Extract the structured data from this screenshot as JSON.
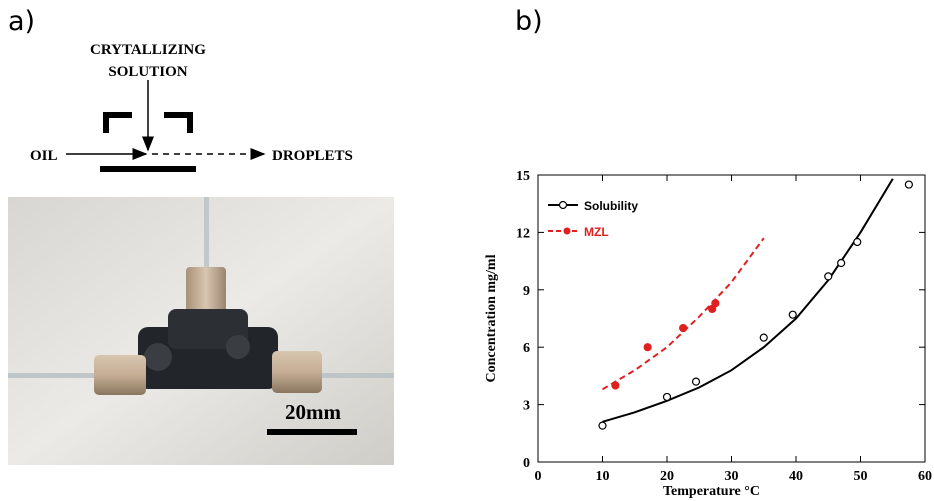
{
  "panels": {
    "a": "a)",
    "b": "b)"
  },
  "schematic": {
    "top_label_line1": "CRYTALLIZING",
    "top_label_line2": "SOLUTION",
    "left_label": "OIL",
    "right_label": "DROPLETS"
  },
  "photo": {
    "scale_label": "20mm"
  },
  "colors": {
    "solubility": "#000000",
    "mzl": "#e02020"
  },
  "chart_data": {
    "type": "scatter",
    "title": "",
    "xlabel": "Temperature  °C",
    "ylabel": "Concentration  mg/ml",
    "xlim": [
      0,
      60
    ],
    "ylim": [
      0,
      15
    ],
    "xticks": [
      "0",
      "10",
      "20",
      "30",
      "40",
      "50",
      "60"
    ],
    "yticks": [
      "0",
      "3",
      "6",
      "9",
      "12",
      "15"
    ],
    "legend_position": "top-left",
    "grid": false,
    "series": [
      {
        "name": "Solubility",
        "points": [
          [
            10,
            1.9
          ],
          [
            20,
            3.4
          ],
          [
            24.5,
            4.2
          ],
          [
            35,
            6.5
          ],
          [
            39.5,
            7.7
          ],
          [
            45,
            9.7
          ],
          [
            47,
            10.4
          ],
          [
            49.5,
            11.5
          ],
          [
            57.5,
            14.5
          ]
        ],
        "fit": [
          [
            10,
            2.1
          ],
          [
            15,
            2.6
          ],
          [
            20,
            3.2
          ],
          [
            25,
            3.9
          ],
          [
            30,
            4.8
          ],
          [
            35,
            6.0
          ],
          [
            40,
            7.5
          ],
          [
            45,
            9.5
          ],
          [
            50,
            12.0
          ],
          [
            55,
            14.8
          ]
        ]
      },
      {
        "name": "MZL",
        "points": [
          [
            12,
            4.0
          ],
          [
            17,
            6.0
          ],
          [
            22.5,
            7.0
          ],
          [
            27,
            8.0
          ],
          [
            27.5,
            8.3
          ]
        ],
        "fit": [
          [
            10,
            3.8
          ],
          [
            15,
            4.8
          ],
          [
            20,
            6.0
          ],
          [
            25,
            7.6
          ],
          [
            30,
            9.4
          ],
          [
            35,
            11.7
          ]
        ]
      }
    ]
  }
}
